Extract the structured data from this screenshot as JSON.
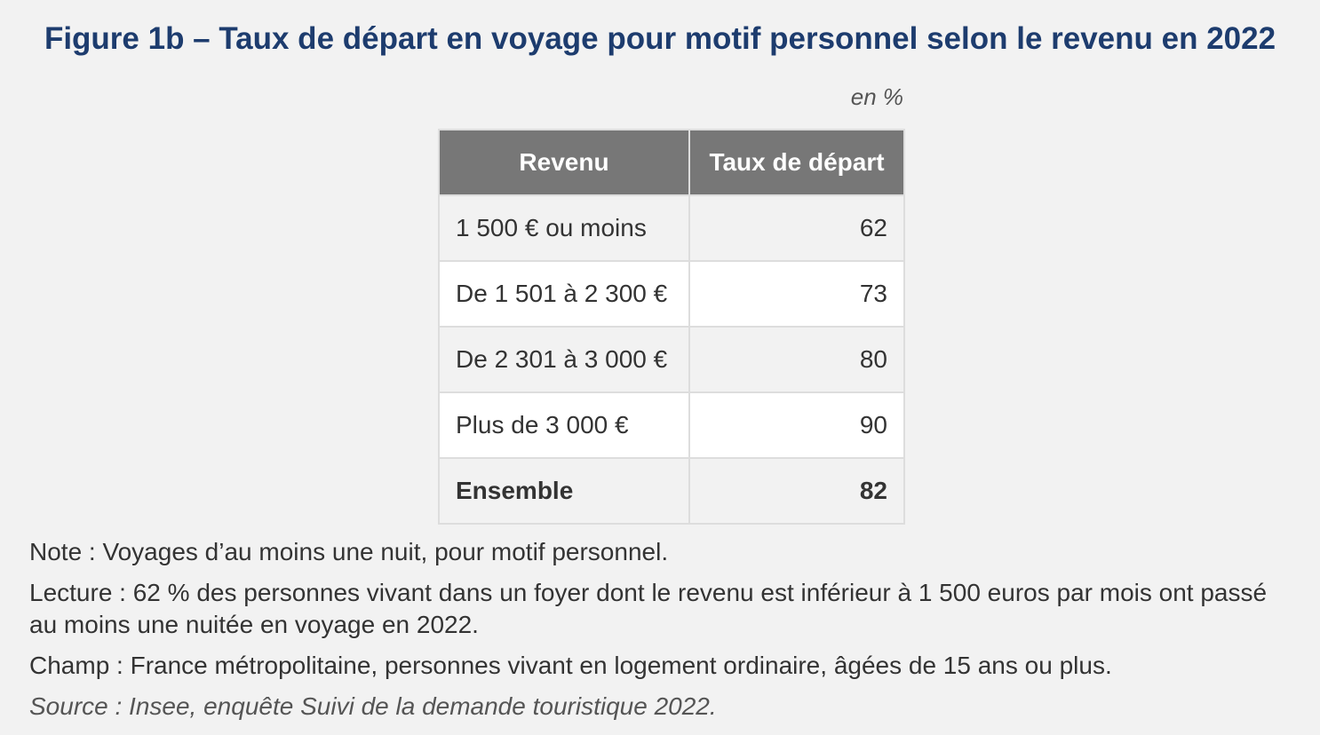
{
  "header": {
    "title": "Figure 1b – Taux de départ en voyage pour motif personnel selon le revenu en 2022",
    "unit": "en %"
  },
  "table": {
    "columns": [
      "Revenu",
      "Taux de départ"
    ],
    "rows": [
      [
        "1 500 € ou moins",
        62
      ],
      [
        "De 1 501 à 2 300 €",
        73
      ],
      [
        "De 2 301 à 3 000 €",
        80
      ],
      [
        "Plus de 3 000 €",
        90
      ],
      [
        "Ensemble",
        82
      ]
    ]
  },
  "notes": {
    "note": "Note : Voyages d’au moins une nuit, pour motif personnel.",
    "lecture": "Lecture : 62 % des personnes vivant dans un foyer dont le revenu est inférieur à 1 500 euros par mois ont passé au moins une nuitée en voyage en 2022.",
    "champ": "Champ : France métropolitaine, personnes vivant en logement ordinaire, âgées de 15 ans ou plus.",
    "source": "Source : Insee, enquête Suivi de la demande touristique 2022."
  }
}
